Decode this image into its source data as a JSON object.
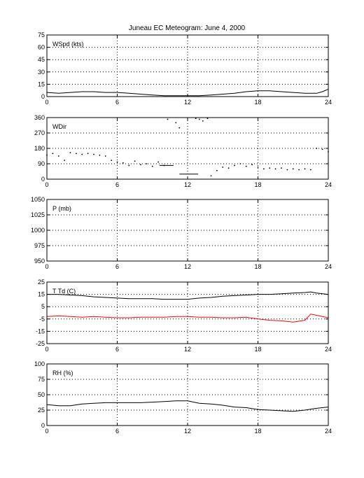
{
  "title": "Juneau EC Meteogram:      June  4, 2000",
  "colors": {
    "axis": "#000000",
    "grid": "#000000",
    "series_black": "#000000",
    "series_red": "#ff0000",
    "background": "#ffffff"
  },
  "chart_data": [
    {
      "type": "scatter",
      "label": "WSpd (kts)",
      "xlim": [
        0,
        24
      ],
      "ylim": [
        0,
        75
      ],
      "xticks": [
        0,
        6,
        12,
        18,
        24
      ],
      "yticks": [
        0,
        15,
        30,
        45,
        60,
        75
      ],
      "grid": true,
      "series": [
        {
          "color": "#000000",
          "style": "line",
          "x": [
            0,
            1,
            2,
            3,
            4,
            5,
            6,
            7,
            8,
            9,
            10,
            11,
            12,
            13,
            14,
            15,
            16,
            17,
            18,
            19,
            20,
            21,
            22,
            23,
            23.5,
            24
          ],
          "y": [
            5,
            4,
            5,
            6,
            6,
            5,
            5,
            4,
            3,
            2,
            1,
            1,
            1,
            1,
            2,
            3,
            4,
            6,
            7,
            7,
            6,
            5,
            4,
            4,
            6,
            9
          ]
        }
      ]
    },
    {
      "type": "scatter",
      "label": "WDir",
      "xlim": [
        0,
        24
      ],
      "ylim": [
        0,
        360
      ],
      "xticks": [
        0,
        6,
        12,
        18,
        24
      ],
      "yticks": [
        0,
        90,
        180,
        270,
        360
      ],
      "grid": true,
      "series": [
        {
          "color": "#000000",
          "style": "dots",
          "x": [
            0,
            0.5,
            1,
            1.5,
            2,
            2.5,
            3,
            3.5,
            4,
            4.5,
            5,
            5.5,
            6,
            6.5,
            7,
            7.5,
            8,
            8.5,
            9,
            9.5,
            10,
            10.3,
            11,
            11.3,
            12.7,
            13,
            13.3,
            13.7,
            14,
            14.5,
            15,
            15.5,
            16,
            16.5,
            17,
            17.5,
            18,
            18.5,
            19,
            19.5,
            20,
            20.5,
            21,
            21.5,
            22,
            22.5,
            23,
            23.5,
            24
          ],
          "y": [
            140,
            150,
            135,
            110,
            155,
            150,
            145,
            150,
            145,
            140,
            135,
            110,
            100,
            95,
            80,
            105,
            85,
            90,
            75,
            100,
            80,
            350,
            330,
            300,
            355,
            350,
            340,
            355,
            20,
            50,
            70,
            65,
            80,
            90,
            75,
            85,
            70,
            60,
            65,
            60,
            65,
            55,
            60,
            55,
            60,
            55,
            180,
            175,
            160
          ]
        },
        {
          "color": "#000000",
          "style": "line",
          "x": [
            9.6,
            10.8
          ],
          "y": [
            80,
            80
          ]
        },
        {
          "color": "#000000",
          "style": "line",
          "x": [
            11.3,
            12.9
          ],
          "y": [
            30,
            30
          ]
        }
      ]
    },
    {
      "type": "line",
      "label": "P (mb)",
      "xlim": [
        0,
        24
      ],
      "ylim": [
        950,
        1050
      ],
      "xticks": [
        0,
        6,
        12,
        18,
        24
      ],
      "yticks": [
        950,
        975,
        1000,
        1025,
        1050
      ],
      "grid": true,
      "series": []
    },
    {
      "type": "line",
      "label": "T Td (C)",
      "xlim": [
        0,
        24
      ],
      "ylim": [
        -25,
        25
      ],
      "xticks": [
        0,
        6,
        12,
        18,
        24
      ],
      "yticks": [
        -25,
        -15,
        -5,
        5,
        15,
        25
      ],
      "grid": true,
      "series": [
        {
          "color": "#000000",
          "style": "line",
          "x": [
            0,
            1,
            2,
            3,
            4,
            5,
            6,
            7,
            8,
            9,
            10,
            11,
            12,
            13,
            14,
            15,
            16,
            17,
            18,
            19,
            20,
            21,
            22,
            22.5,
            23,
            24
          ],
          "y": [
            15,
            15,
            14.5,
            14,
            13,
            12.5,
            12,
            11.5,
            11.5,
            11.5,
            11,
            11,
            11,
            12,
            12.5,
            13.5,
            14,
            14.5,
            15,
            15,
            15.5,
            16,
            16.5,
            17,
            16,
            15
          ]
        },
        {
          "color": "#ff0000",
          "style": "line",
          "x": [
            0,
            1,
            2,
            3,
            4,
            5,
            6,
            7,
            8,
            9,
            10,
            11,
            12,
            13,
            14,
            15,
            16,
            17,
            18,
            19,
            20,
            21,
            22,
            22.5,
            23,
            24
          ],
          "y": [
            -3,
            -2.5,
            -3,
            -3.5,
            -3,
            -3.5,
            -4,
            -4,
            -3.5,
            -3.5,
            -3.5,
            -3,
            -3,
            -3.5,
            -3.5,
            -4,
            -4,
            -3.5,
            -5,
            -6,
            -6.5,
            -7.5,
            -6,
            -1,
            -2,
            -4
          ]
        }
      ]
    },
    {
      "type": "line",
      "label": "RH (%)",
      "xlim": [
        0,
        24
      ],
      "ylim": [
        0,
        100
      ],
      "xticks": [
        0,
        6,
        12,
        18,
        24
      ],
      "yticks": [
        0,
        25,
        50,
        75,
        100
      ],
      "grid": true,
      "series": [
        {
          "color": "#000000",
          "style": "line",
          "x": [
            0,
            1,
            2,
            3,
            4,
            5,
            6,
            7,
            8,
            9,
            10,
            11,
            12,
            13,
            14,
            15,
            16,
            17,
            18,
            19,
            20,
            21,
            22,
            23,
            24
          ],
          "y": [
            34,
            32,
            32,
            35,
            36,
            37,
            37,
            37,
            37,
            38,
            39,
            40,
            40,
            36,
            35,
            33,
            30,
            29,
            26,
            25,
            24,
            23,
            25,
            28,
            30
          ]
        }
      ]
    }
  ]
}
